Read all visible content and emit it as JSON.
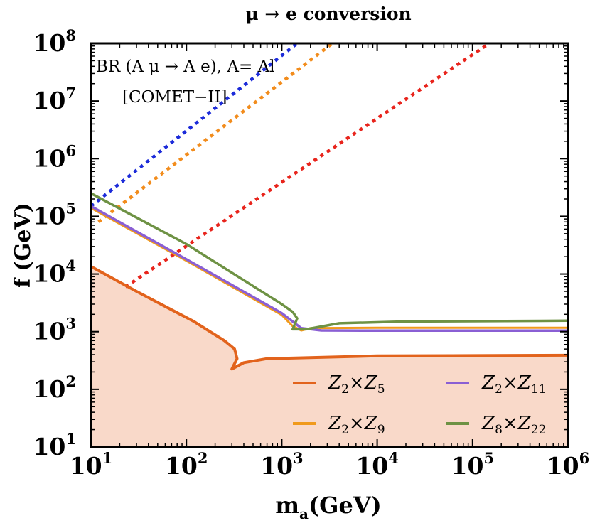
{
  "chart_data": {
    "type": "line",
    "title": "μ → e conversion",
    "xlabel_main": "m",
    "xlabel_sub": "a",
    "xlabel_unit": "(GeV)",
    "ylabel": "f (GeV)",
    "xscale": "log",
    "yscale": "log",
    "xlim": [
      10,
      1000000
    ],
    "ylim": [
      10,
      100000000
    ],
    "x_ticks": [
      {
        "base": "10",
        "exp": "1",
        "value": 10
      },
      {
        "base": "10",
        "exp": "2",
        "value": 100
      },
      {
        "base": "10",
        "exp": "3",
        "value": 1000
      },
      {
        "base": "10",
        "exp": "4",
        "value": 10000
      },
      {
        "base": "10",
        "exp": "5",
        "value": 100000
      },
      {
        "base": "10",
        "exp": "6",
        "value": 1000000
      }
    ],
    "y_ticks": [
      {
        "base": "10",
        "exp": "1",
        "value": 10
      },
      {
        "base": "10",
        "exp": "2",
        "value": 100
      },
      {
        "base": "10",
        "exp": "3",
        "value": 1000
      },
      {
        "base": "10",
        "exp": "4",
        "value": 10000
      },
      {
        "base": "10",
        "exp": "5",
        "value": 100000
      },
      {
        "base": "10",
        "exp": "6",
        "value": 1000000
      },
      {
        "base": "10",
        "exp": "7",
        "value": 10000000
      },
      {
        "base": "10",
        "exp": "8",
        "value": 100000000
      }
    ],
    "annotations": [
      "BR (A μ → A e), A= Al",
      "[COMET−II]"
    ],
    "excluded_region": {
      "color": "#f9d9c9",
      "boundary_series": "Z2xZ5"
    },
    "series": [
      {
        "id": "Z2xZ5",
        "legend": {
          "a": "Z",
          "a_sub": "2",
          "b": "Z",
          "b_sub": "5"
        },
        "color": "#e2631c",
        "style": "solid",
        "points": [
          [
            10,
            13500
          ],
          [
            30,
            5000
          ],
          [
            120,
            1500
          ],
          [
            250,
            700
          ],
          [
            320,
            500
          ],
          [
            340,
            340
          ],
          [
            300,
            225
          ],
          [
            400,
            290
          ],
          [
            700,
            340
          ],
          [
            1000,
            345
          ],
          [
            10000,
            380
          ],
          [
            100000,
            385
          ],
          [
            1000000,
            390
          ]
        ]
      },
      {
        "id": "Z2xZ9",
        "legend": {
          "a": "Z",
          "a_sub": "2",
          "b": "Z",
          "b_sub": "9"
        },
        "color": "#f09a1c",
        "style": "solid",
        "points": [
          [
            10,
            140000
          ],
          [
            100,
            17000
          ],
          [
            1000,
            1950
          ],
          [
            1300,
            1250
          ],
          [
            1600,
            1050
          ],
          [
            2000,
            1150
          ],
          [
            10000,
            1170
          ],
          [
            100000,
            1170
          ],
          [
            1000000,
            1170
          ]
        ]
      },
      {
        "id": "Z2xZ11",
        "legend": {
          "a": "Z",
          "a_sub": "2",
          "b": "Z",
          "b_sub": "11"
        },
        "color": "#8a5fd4",
        "style": "solid",
        "points": [
          [
            10,
            150000
          ],
          [
            100,
            18000
          ],
          [
            1000,
            2100
          ],
          [
            1600,
            1150
          ],
          [
            2600,
            1050
          ],
          [
            10000,
            1040
          ],
          [
            100000,
            1040
          ],
          [
            1000000,
            1040
          ]
        ]
      },
      {
        "id": "Z8xZ22",
        "legend": {
          "a": "Z",
          "a_sub": "8",
          "b": "Z",
          "b_sub": "22"
        },
        "color": "#6e9244",
        "style": "solid",
        "points": [
          [
            10,
            250000
          ],
          [
            100,
            33000
          ],
          [
            1000,
            3000
          ],
          [
            1300,
            2200
          ],
          [
            1450,
            1700
          ],
          [
            1300,
            1100
          ],
          [
            1800,
            1100
          ],
          [
            4000,
            1400
          ],
          [
            20000,
            1500
          ],
          [
            1000000,
            1550
          ]
        ]
      },
      {
        "id": "Z2xZ5-dotted",
        "color": "#e8241c",
        "style": "dotted",
        "points": [
          [
            23,
            6000
          ],
          [
            150000,
            100000000
          ]
        ]
      },
      {
        "id": "Z2xZ9-dotted",
        "color": "#f28c1c",
        "style": "dotted",
        "points": [
          [
            12,
            80000
          ],
          [
            3400,
            100000000
          ]
        ]
      },
      {
        "id": "Z8xZ22-dotted",
        "color": "#1c2bd9",
        "style": "dotted",
        "points": [
          [
            10,
            150000
          ],
          [
            1450,
            100000000
          ]
        ]
      }
    ]
  }
}
